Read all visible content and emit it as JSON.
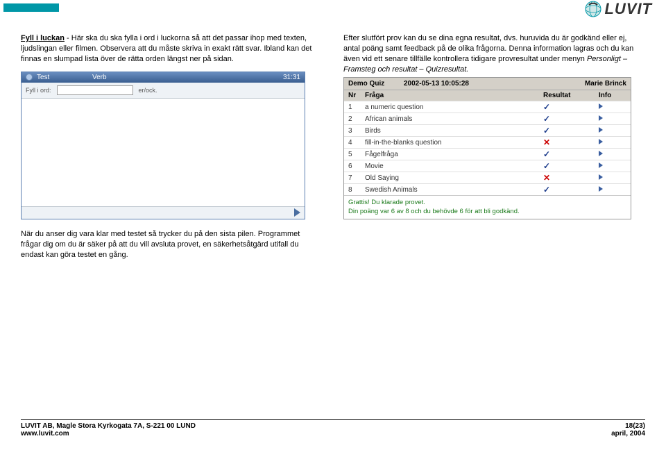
{
  "brand": {
    "name": "LUVIT"
  },
  "left": {
    "p1a": "Fyll i luckan",
    "p1b": " - Här ska du ska fylla i ord i luckorna så att det passar ihop med texten, ljudslingan eller filmen. Observera att du måste skriva in exakt rätt svar. Ibland kan det finnas en slumpad lista över de rätta orden längst ner på sidan."
  },
  "quiz": {
    "col1": "Test",
    "col2": "Verb",
    "time": "31:31",
    "toolbar_label": "Fyll i ord:",
    "toolbar_suffix": "er/ock."
  },
  "right": {
    "p1": "Efter slutfört prov kan du se dina egna resultat, dvs. huruvida du är godkänd eller ej, antal poäng samt feedback på de olika frågorna. Denna information lagras och du kan även vid ett senare tillfälle kontrollera tidigare provresultat under menyn ",
    "p1i": "Personligt – Framsteg och resultat – Quizresultat."
  },
  "results": {
    "title": "Demo Quiz",
    "datetime": "2002-05-13 10:05:28",
    "user": "Marie Brinck",
    "col_nr": "Nr",
    "col_q": "Fråga",
    "col_res": "Resultat",
    "col_info": "Info",
    "rows": [
      {
        "nr": "1",
        "q": "a numeric question",
        "ok": true
      },
      {
        "nr": "2",
        "q": "African animals",
        "ok": true
      },
      {
        "nr": "3",
        "q": "Birds",
        "ok": true
      },
      {
        "nr": "4",
        "q": "fill-in-the-blanks question",
        "ok": false
      },
      {
        "nr": "5",
        "q": "Fågelfråga",
        "ok": true
      },
      {
        "nr": "6",
        "q": "Movie",
        "ok": true
      },
      {
        "nr": "7",
        "q": "Old Saying",
        "ok": false
      },
      {
        "nr": "8",
        "q": "Swedish Animals",
        "ok": true
      }
    ],
    "msg1": "Grattis! Du klarade provet.",
    "msg2": "Din poäng var 6 av 8 och du behövde 6 för att bli godkänd."
  },
  "bottom": {
    "p": "När du anser dig vara klar med testet så trycker du på den sista pilen. Programmet frågar dig om du är säker på att du vill avsluta provet, en säkerhetsåtgärd utifall du endast kan göra testet en gång."
  },
  "footer": {
    "addr": "LUVIT AB, Magle Stora Kyrkogata 7A, S-221 00  LUND",
    "url": "www.luvit.com",
    "page": "18(23)",
    "date": "april, 2004"
  }
}
